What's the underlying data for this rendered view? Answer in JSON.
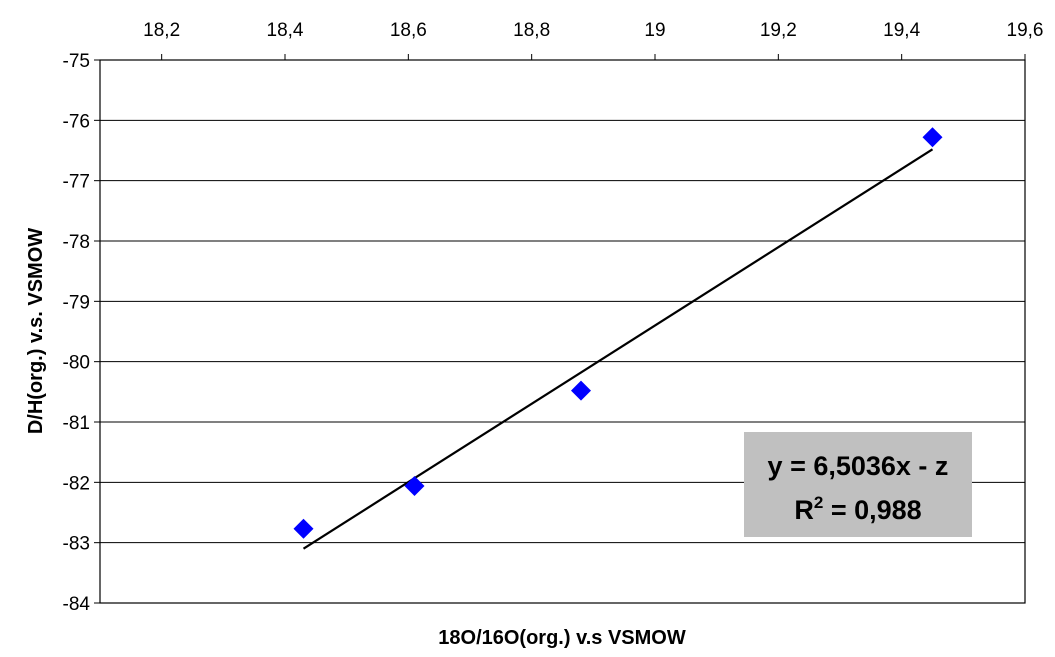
{
  "chart_data": {
    "type": "scatter",
    "title": "",
    "xlabel": "18O/16O(org.) v.s VSMOW",
    "ylabel": "D/H(org.) v.s. VSMOW",
    "x_axis_position": "top",
    "xlim": [
      18.1,
      19.6
    ],
    "ylim": [
      -84,
      -75
    ],
    "x_ticks": [
      "18,2",
      "18,4",
      "18,6",
      "18,8",
      "19",
      "19,2",
      "19,4",
      "19,6"
    ],
    "y_ticks": [
      "-75",
      "-76",
      "-77",
      "-78",
      "-79",
      "-80",
      "-81",
      "-82",
      "-83",
      "-84"
    ],
    "grid": "horizontal",
    "legend": "none",
    "series": [
      {
        "marker": "diamond",
        "color": "#0000FF",
        "points": [
          {
            "x": 18.43,
            "y": -82.77
          },
          {
            "x": 18.61,
            "y": -82.06
          },
          {
            "x": 18.88,
            "y": -80.48
          },
          {
            "x": 19.45,
            "y": -76.28
          }
        ]
      }
    ],
    "trendline": {
      "color": "#000000",
      "start": {
        "x": 18.43,
        "y": -83.1
      },
      "end": {
        "x": 19.45,
        "y": -76.48
      }
    },
    "annotation": {
      "line1": "y = 6,5036x - z",
      "line2_prefix": "R",
      "line2_sup": "2",
      "line2_suffix": " = 0,988",
      "background": "#C0C0C0",
      "placement": "lower-right"
    }
  }
}
